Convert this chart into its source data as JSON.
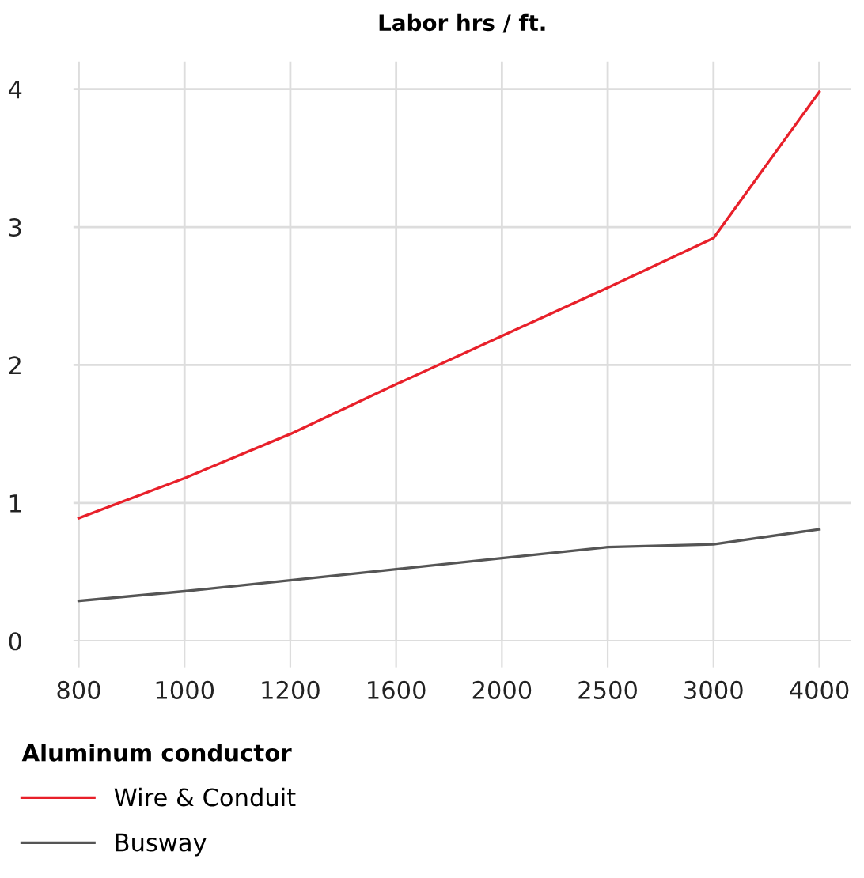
{
  "chart_data": {
    "type": "line",
    "title": "Labor hrs / ft.",
    "legend_title": "Aluminum conductor",
    "categories": [
      "800",
      "1000",
      "1200",
      "1600",
      "2000",
      "2500",
      "3000",
      "4000"
    ],
    "series": [
      {
        "name": "Wire & Conduit",
        "color": "#e8202a",
        "values": [
          0.89,
          1.18,
          1.5,
          1.86,
          2.21,
          2.56,
          2.92,
          3.98
        ]
      },
      {
        "name": "Busway",
        "color": "#555555",
        "values": [
          0.29,
          0.36,
          0.44,
          0.52,
          0.6,
          0.68,
          0.7,
          0.81
        ]
      }
    ],
    "ylim": [
      0,
      4.2
    ],
    "yticks": [
      0,
      1,
      2,
      3,
      4
    ],
    "grid": true,
    "legend": "bottom left",
    "line_style": "solid",
    "marker": "none"
  }
}
